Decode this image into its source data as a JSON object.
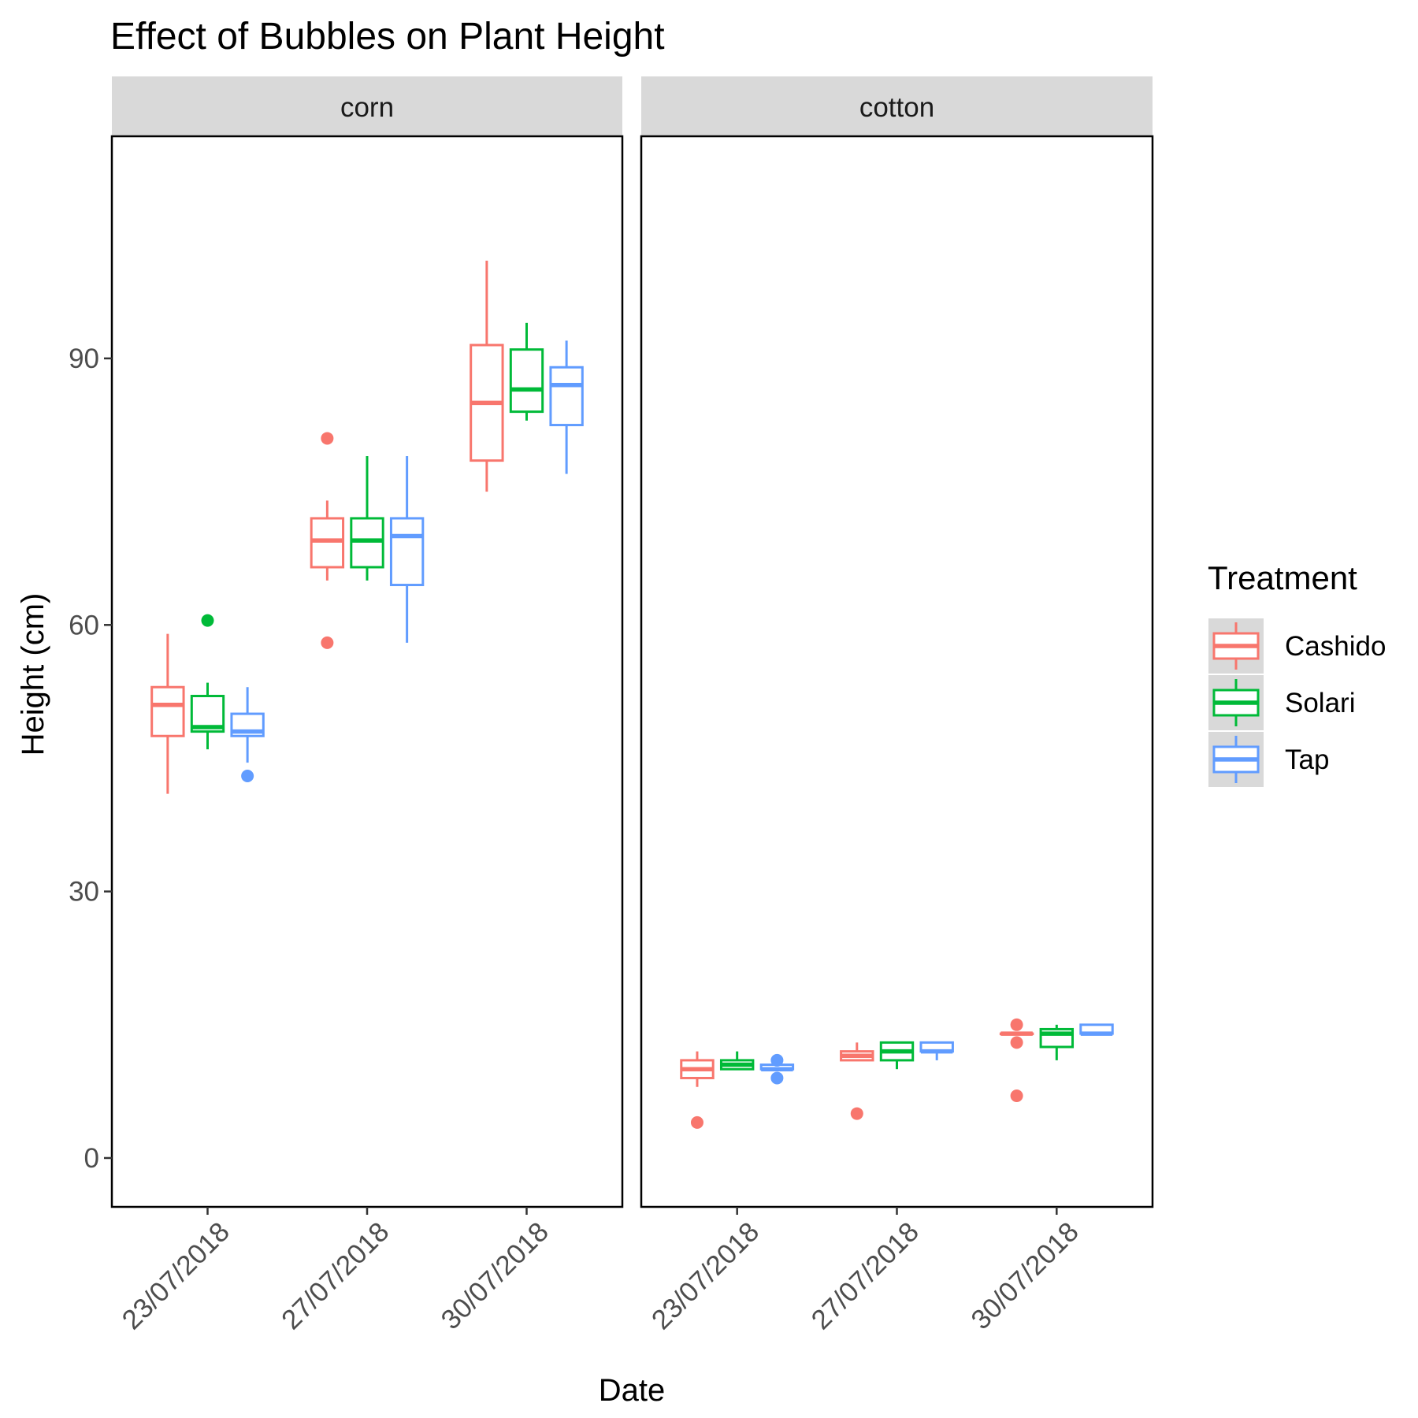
{
  "chart_data": {
    "type": "boxplot",
    "title": "Effect of Bubbles on Plant Height",
    "xlabel": "Date",
    "ylabel": "Height (cm)",
    "ylim": [
      -5.5,
      115
    ],
    "yticks": [
      0,
      30,
      60,
      90
    ],
    "categories": [
      "23/07/2018",
      "27/07/2018",
      "30/07/2018"
    ],
    "facets": [
      "corn",
      "cotton"
    ],
    "grid": false,
    "legend": {
      "title": "Treatment",
      "position": "right",
      "entries": [
        "Cashido",
        "Solari",
        "Tap"
      ]
    },
    "colors": {
      "Cashido": "#F8766D",
      "Solari": "#00BA38",
      "Tap": "#619CFF",
      "strip_bg": "#D9D9D9",
      "legend_key_bg": "#D9D9D9"
    },
    "series": [
      {
        "name": "Cashido",
        "boxes": {
          "corn": [
            {
              "date": "23/07/2018",
              "min": 41,
              "q1": 47.5,
              "median": 51,
              "q3": 53,
              "max": 59,
              "outliers": []
            },
            {
              "date": "27/07/2018",
              "min": 65,
              "q1": 66.5,
              "median": 69.5,
              "q3": 72,
              "max": 74,
              "outliers": [
                81,
                58
              ]
            },
            {
              "date": "30/07/2018",
              "min": 75,
              "q1": 78.5,
              "median": 85,
              "q3": 91.5,
              "max": 101,
              "outliers": []
            }
          ],
          "cotton": [
            {
              "date": "23/07/2018",
              "min": 8,
              "q1": 9,
              "median": 10,
              "q3": 11,
              "max": 12,
              "outliers": [
                4
              ]
            },
            {
              "date": "27/07/2018",
              "min": 11,
              "q1": 11,
              "median": 11.5,
              "q3": 12,
              "max": 13,
              "outliers": [
                5
              ]
            },
            {
              "date": "30/07/2018",
              "min": 14,
              "q1": 14,
              "median": 14,
              "q3": 14,
              "max": 14,
              "outliers": [
                15,
                13,
                7
              ]
            }
          ]
        }
      },
      {
        "name": "Solari",
        "boxes": {
          "corn": [
            {
              "date": "23/07/2018",
              "min": 46,
              "q1": 48,
              "median": 48.5,
              "q3": 52,
              "max": 53.5,
              "outliers": [
                60.5
              ]
            },
            {
              "date": "27/07/2018",
              "min": 65,
              "q1": 66.5,
              "median": 69.5,
              "q3": 72,
              "max": 79,
              "outliers": []
            },
            {
              "date": "30/07/2018",
              "min": 83,
              "q1": 84,
              "median": 86.5,
              "q3": 91,
              "max": 94,
              "outliers": []
            }
          ],
          "cotton": [
            {
              "date": "23/07/2018",
              "min": 10,
              "q1": 10,
              "median": 10.5,
              "q3": 11,
              "max": 12,
              "outliers": []
            },
            {
              "date": "27/07/2018",
              "min": 10,
              "q1": 11,
              "median": 12,
              "q3": 13,
              "max": 13,
              "outliers": []
            },
            {
              "date": "30/07/2018",
              "min": 11,
              "q1": 12.5,
              "median": 14,
              "q3": 14.5,
              "max": 15,
              "outliers": []
            }
          ]
        }
      },
      {
        "name": "Tap",
        "boxes": {
          "corn": [
            {
              "date": "23/07/2018",
              "min": 44.5,
              "q1": 47.5,
              "median": 48,
              "q3": 50,
              "max": 53,
              "outliers": [
                43
              ]
            },
            {
              "date": "27/07/2018",
              "min": 58,
              "q1": 64.5,
              "median": 70,
              "q3": 72,
              "max": 79,
              "outliers": []
            },
            {
              "date": "30/07/2018",
              "min": 77,
              "q1": 82.5,
              "median": 87,
              "q3": 89,
              "max": 92,
              "outliers": []
            }
          ],
          "cotton": [
            {
              "date": "23/07/2018",
              "min": 10,
              "q1": 10,
              "median": 10,
              "q3": 10.5,
              "max": 10.5,
              "outliers": [
                11,
                9
              ]
            },
            {
              "date": "27/07/2018",
              "min": 11,
              "q1": 12,
              "median": 12,
              "q3": 13,
              "max": 13,
              "outliers": []
            },
            {
              "date": "30/07/2018",
              "min": 14,
              "q1": 14,
              "median": 14,
              "q3": 15,
              "max": 15,
              "outliers": []
            }
          ]
        }
      }
    ]
  }
}
